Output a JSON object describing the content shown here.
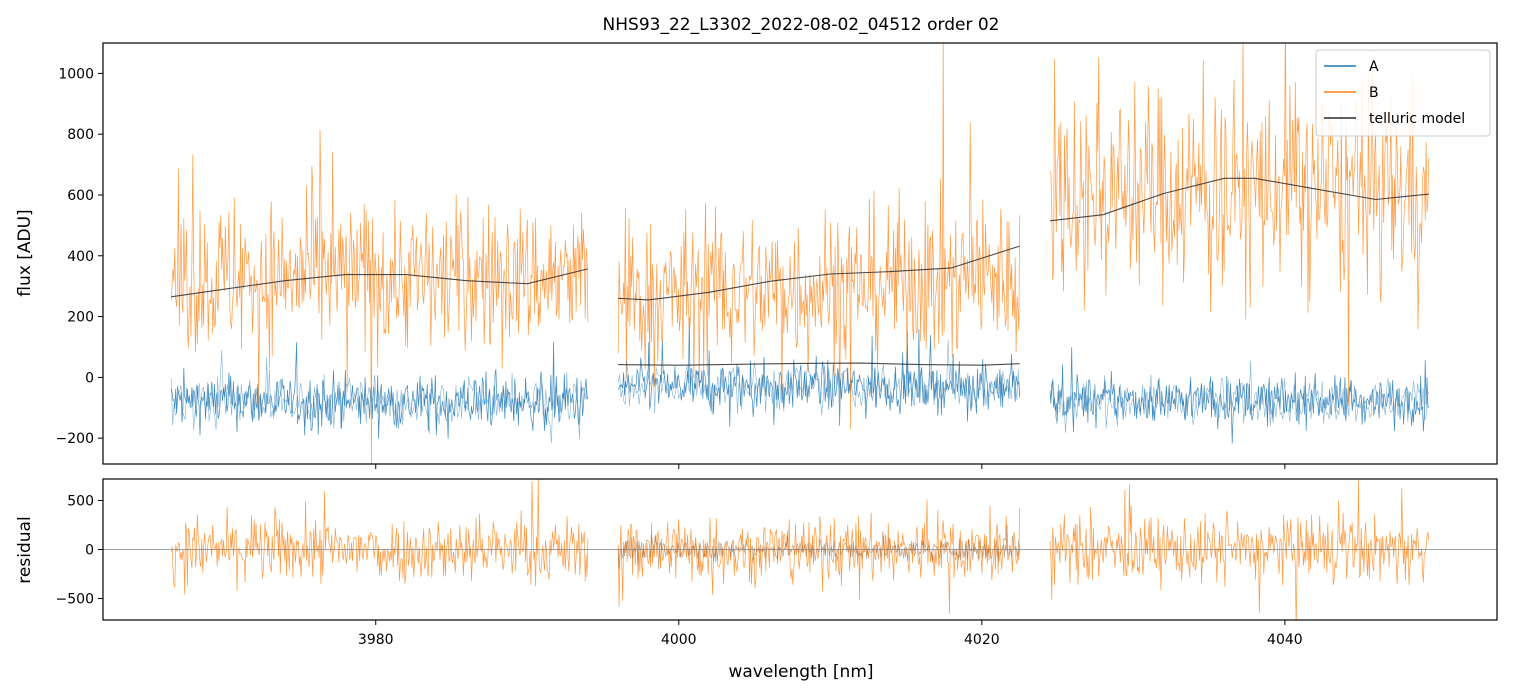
{
  "chart_data": {
    "type": "line",
    "title": "NHS93_22_L3302_2022-08-02_04512  order 02",
    "xlabel": "wavelength [nm]",
    "xlim": [
      3962,
      4054
    ],
    "x_ticks": [
      3980,
      4000,
      4020,
      4040
    ],
    "x_tick_labels": [
      "3980",
      "4000",
      "4020",
      "4040"
    ],
    "segments": [
      [
        3966.5,
        3994.0
      ],
      [
        3996.0,
        4022.5
      ],
      [
        4024.5,
        4049.5
      ]
    ],
    "colors": {
      "A": "#1f77b4",
      "B": "#ff7f0e",
      "telluric": "#2b2b2b",
      "zero_line": "#808080"
    },
    "panels": {
      "flux": {
        "ylabel": "flux [ADU]",
        "ylim": [
          -285,
          1100
        ],
        "y_ticks": [
          -200,
          0,
          200,
          400,
          600,
          800,
          1000
        ],
        "y_tick_labels": [
          "−200",
          "0",
          "200",
          "400",
          "600",
          "800",
          "1000"
        ],
        "series": [
          {
            "name": "A",
            "noise_type": "spectrum",
            "segment_levels": [
              [
                -80,
                -80
              ],
              [
                -30,
                -30
              ],
              [
                -75,
                -75
              ]
            ],
            "spread": [
              [
                110,
                110
              ],
              [
                100,
                100
              ],
              [
                95,
                95
              ]
            ]
          },
          {
            "name": "B",
            "noise_type": "spectrum",
            "segment_levels": [
              [
                330,
                330
              ],
              [
                260,
                340
              ],
              [
                620,
                620
              ]
            ],
            "spread": [
              [
                320,
                300
              ],
              [
                320,
                330
              ],
              [
                430,
                430
              ]
            ]
          }
        ],
        "telluric_model": {
          "name": "telluric model",
          "x": [
            3966.5,
            3970,
            3974,
            3978,
            3982,
            3986,
            3990,
            3994,
            3996,
            3998,
            4002,
            4006,
            4010,
            4014,
            4018,
            4022.5,
            4024.5,
            4028,
            4032,
            4036,
            4038,
            4042,
            4046,
            4049.5
          ],
          "y": [
            265,
            290,
            318,
            338,
            338,
            318,
            308,
            357,
            260,
            255,
            280,
            316,
            340,
            348,
            360,
            432,
            515,
            535,
            605,
            655,
            655,
            620,
            585,
            603
          ]
        },
        "telluric_model_a": {
          "x": [
            3996.0,
            4000,
            4004,
            4008,
            4012,
            4016,
            4020,
            4022.5
          ],
          "y": [
            42,
            40,
            43,
            46,
            47,
            42,
            40,
            45
          ]
        }
      },
      "residual": {
        "ylabel": "residual",
        "ylim": [
          -720,
          720
        ],
        "y_ticks": [
          -500,
          0,
          500
        ],
        "y_tick_labels": [
          "−500",
          "0",
          "500"
        ]
      }
    },
    "legend": {
      "location": "upper right",
      "entries": [
        {
          "label": "A",
          "color": "#1f77b4"
        },
        {
          "label": "B",
          "color": "#ff7f0e"
        },
        {
          "label": "telluric model",
          "color": "#2b2b2b"
        }
      ]
    }
  }
}
